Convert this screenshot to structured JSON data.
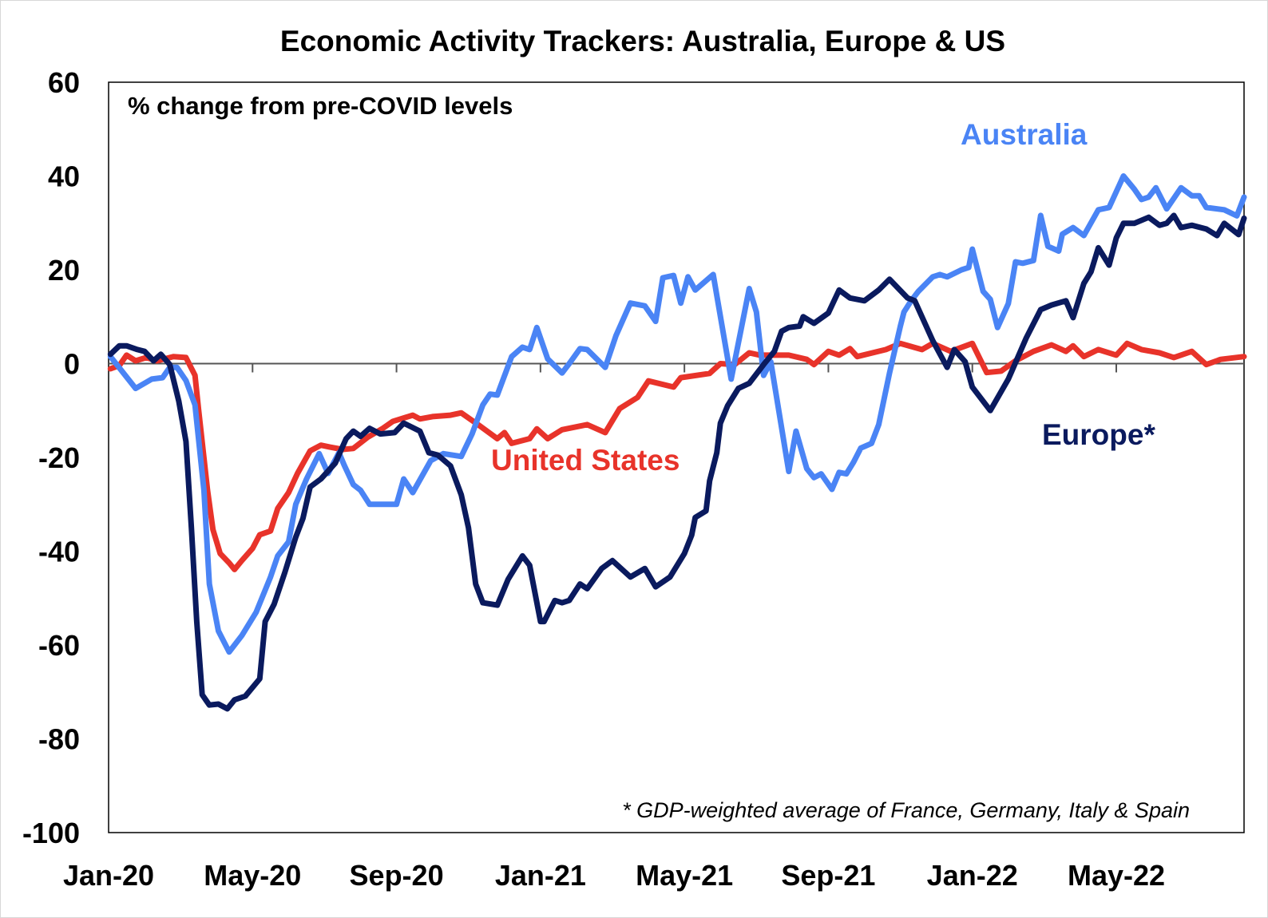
{
  "chart_data": {
    "type": "line",
    "title": "Economic Activity Trackers: Australia, Europe & US",
    "subtitle": "% change from pre-COVID levels",
    "xlabel": "",
    "ylabel": "",
    "x_unit": "months since Jan-20",
    "xlim": [
      0,
      31.55
    ],
    "ylim": [
      -100,
      60
    ],
    "yticks": [
      60,
      40,
      20,
      0,
      -20,
      -40,
      -60,
      -80,
      -100
    ],
    "ytick_labels": [
      "60",
      "40",
      "20",
      "0",
      "-20",
      "-40",
      "-60",
      "-80",
      "-100"
    ],
    "xticks": [
      0,
      4,
      8,
      12,
      16,
      20,
      24,
      28
    ],
    "xtick_labels": [
      "Jan-20",
      "May-20",
      "Sep-20",
      "Jan-21",
      "May-21",
      "Sep-21",
      "Jan-22",
      "May-22"
    ],
    "grid": false,
    "legend": "none (direct labels)",
    "footnote": "* GDP-weighted average of France, Germany, Italy & Spain",
    "series": [
      {
        "name": "United States",
        "label": "United States",
        "color": "#E8332A",
        "points": [
          [
            0.05,
            -1.1
          ],
          [
            0.3,
            -0.4
          ],
          [
            0.5,
            1.8
          ],
          [
            0.75,
            0.6
          ],
          [
            1.05,
            1.3
          ],
          [
            1.35,
            0.6
          ],
          [
            1.8,
            1.5
          ],
          [
            2.15,
            1.3
          ],
          [
            2.4,
            -2.5
          ],
          [
            2.5,
            -9.8
          ],
          [
            2.75,
            -27
          ],
          [
            2.9,
            -35.4
          ],
          [
            3.1,
            -40.5
          ],
          [
            3.35,
            -42.5
          ],
          [
            3.5,
            -43.9
          ],
          [
            3.7,
            -42
          ],
          [
            4.0,
            -39.4
          ],
          [
            4.2,
            -36.5
          ],
          [
            4.5,
            -35.7
          ],
          [
            4.7,
            -30.9
          ],
          [
            5.0,
            -27.5
          ],
          [
            5.25,
            -23.4
          ],
          [
            5.6,
            -18.6
          ],
          [
            5.9,
            -17.4
          ],
          [
            6.15,
            -17.8
          ],
          [
            6.5,
            -18.3
          ],
          [
            6.8,
            -18.1
          ],
          [
            7.2,
            -15.7
          ],
          [
            7.6,
            -13.9
          ],
          [
            7.9,
            -12.3
          ],
          [
            8.45,
            -11
          ],
          [
            8.65,
            -11.8
          ],
          [
            9.0,
            -11.3
          ],
          [
            9.5,
            -11
          ],
          [
            9.8,
            -10.5
          ],
          [
            10.3,
            -13.2
          ],
          [
            10.8,
            -16
          ],
          [
            11.0,
            -14.7
          ],
          [
            11.2,
            -17
          ],
          [
            11.7,
            -16
          ],
          [
            11.9,
            -13.9
          ],
          [
            12.2,
            -16
          ],
          [
            12.6,
            -14.1
          ],
          [
            13.3,
            -13
          ],
          [
            13.8,
            -14.7
          ],
          [
            14.2,
            -9.6
          ],
          [
            14.7,
            -7.2
          ],
          [
            15.0,
            -3.7
          ],
          [
            15.7,
            -5
          ],
          [
            15.9,
            -3
          ],
          [
            16.7,
            -2.1
          ],
          [
            17.0,
            0
          ],
          [
            17.4,
            -0.2
          ],
          [
            17.8,
            2.3
          ],
          [
            18.1,
            1.8
          ],
          [
            18.4,
            1.8
          ],
          [
            18.9,
            1.8
          ],
          [
            19.4,
            0.9
          ],
          [
            19.6,
            -0.2
          ],
          [
            20.0,
            2.6
          ],
          [
            20.3,
            1.8
          ],
          [
            20.6,
            3.2
          ],
          [
            20.8,
            1.5
          ],
          [
            21.6,
            3
          ],
          [
            22.0,
            4.3
          ],
          [
            22.6,
            3
          ],
          [
            22.9,
            4.3
          ],
          [
            23.4,
            2.6
          ],
          [
            24.0,
            4.3
          ],
          [
            24.4,
            -1.9
          ],
          [
            24.8,
            -1.6
          ],
          [
            25.2,
            0.6
          ],
          [
            25.7,
            2.6
          ],
          [
            26.2,
            4
          ],
          [
            26.6,
            2.6
          ],
          [
            26.8,
            3.8
          ],
          [
            27.1,
            1.5
          ],
          [
            27.5,
            3
          ],
          [
            28.0,
            1.8
          ],
          [
            28.3,
            4.3
          ],
          [
            28.7,
            3
          ],
          [
            29.2,
            2.3
          ],
          [
            29.6,
            1.3
          ],
          [
            30.1,
            2.6
          ],
          [
            30.5,
            -0.2
          ],
          [
            30.9,
            0.9
          ],
          [
            31.55,
            1.5
          ]
        ]
      },
      {
        "name": "Australia",
        "label": "Australia",
        "color": "#4A84F5",
        "points": [
          [
            0.05,
            1.5
          ],
          [
            0.75,
            -5.3
          ],
          [
            1.2,
            -3.3
          ],
          [
            1.5,
            -3
          ],
          [
            1.7,
            -0.8
          ],
          [
            1.9,
            -0.8
          ],
          [
            2.15,
            -3.6
          ],
          [
            2.4,
            -8.8
          ],
          [
            2.65,
            -27
          ],
          [
            2.8,
            -47
          ],
          [
            3.05,
            -57
          ],
          [
            3.35,
            -61.5
          ],
          [
            3.7,
            -58
          ],
          [
            4.1,
            -53
          ],
          [
            4.5,
            -45.5
          ],
          [
            4.7,
            -41
          ],
          [
            5.0,
            -38
          ],
          [
            5.2,
            -30
          ],
          [
            5.5,
            -24.6
          ],
          [
            5.85,
            -19.2
          ],
          [
            6.1,
            -23.4
          ],
          [
            6.4,
            -19
          ],
          [
            6.55,
            -21.7
          ],
          [
            6.8,
            -25.8
          ],
          [
            7.0,
            -27
          ],
          [
            7.25,
            -30
          ],
          [
            8.0,
            -30
          ],
          [
            8.2,
            -24.6
          ],
          [
            8.45,
            -27.5
          ],
          [
            8.95,
            -20.7
          ],
          [
            9.3,
            -19.2
          ],
          [
            9.8,
            -19.8
          ],
          [
            10.1,
            -15
          ],
          [
            10.4,
            -8.8
          ],
          [
            10.6,
            -6.5
          ],
          [
            10.8,
            -6.7
          ],
          [
            11.2,
            1.5
          ],
          [
            11.5,
            3.5
          ],
          [
            11.7,
            3
          ],
          [
            11.9,
            7.7
          ],
          [
            12.2,
            1
          ],
          [
            12.6,
            -2
          ],
          [
            12.8,
            0
          ],
          [
            13.1,
            3.2
          ],
          [
            13.3,
            3
          ],
          [
            13.8,
            -0.8
          ],
          [
            14.1,
            6
          ],
          [
            14.5,
            12.9
          ],
          [
            14.9,
            12.3
          ],
          [
            15.2,
            9
          ],
          [
            15.4,
            18.3
          ],
          [
            15.7,
            18.8
          ],
          [
            15.9,
            12.9
          ],
          [
            16.1,
            18.5
          ],
          [
            16.3,
            15.7
          ],
          [
            16.8,
            19
          ],
          [
            17.3,
            -3.3
          ],
          [
            17.8,
            16
          ],
          [
            18.0,
            11
          ],
          [
            18.2,
            -2.5
          ],
          [
            18.4,
            0.4
          ],
          [
            18.9,
            -23
          ],
          [
            19.1,
            -14.4
          ],
          [
            19.4,
            -22.4
          ],
          [
            19.6,
            -24.3
          ],
          [
            19.8,
            -23.5
          ],
          [
            20.1,
            -26.8
          ],
          [
            20.3,
            -23.2
          ],
          [
            20.5,
            -23.5
          ],
          [
            20.7,
            -21
          ],
          [
            20.9,
            -18
          ],
          [
            21.2,
            -17
          ],
          [
            21.4,
            -13
          ],
          [
            21.7,
            -2
          ],
          [
            22.0,
            8
          ],
          [
            22.1,
            11
          ],
          [
            22.3,
            13.4
          ],
          [
            22.5,
            15.4
          ],
          [
            22.9,
            18.5
          ],
          [
            23.1,
            19
          ],
          [
            23.3,
            18.5
          ],
          [
            23.7,
            20
          ],
          [
            23.9,
            20.5
          ],
          [
            24.0,
            24.4
          ],
          [
            24.3,
            15.4
          ],
          [
            24.5,
            13.7
          ],
          [
            24.7,
            7.7
          ],
          [
            25.0,
            12.8
          ],
          [
            25.2,
            21.7
          ],
          [
            25.4,
            21.4
          ],
          [
            25.7,
            22
          ],
          [
            25.9,
            31.6
          ],
          [
            26.1,
            25
          ],
          [
            26.4,
            24
          ],
          [
            26.5,
            27.6
          ],
          [
            26.8,
            29
          ],
          [
            27.1,
            27.3
          ],
          [
            27.5,
            32.8
          ],
          [
            27.8,
            33.3
          ],
          [
            28.2,
            40
          ],
          [
            28.5,
            37.2
          ],
          [
            28.7,
            35
          ],
          [
            28.9,
            35.5
          ],
          [
            29.1,
            37.5
          ],
          [
            29.4,
            33
          ],
          [
            29.8,
            37.5
          ],
          [
            30.1,
            35.8
          ],
          [
            30.3,
            35.8
          ],
          [
            30.5,
            33.3
          ],
          [
            31.0,
            32.8
          ],
          [
            31.35,
            31.5
          ],
          [
            31.55,
            35.5
          ]
        ]
      },
      {
        "name": "Europe*",
        "label": "Europe*",
        "color": "#0A1A5E",
        "points": [
          [
            0.05,
            2
          ],
          [
            0.3,
            3.8
          ],
          [
            0.5,
            3.8
          ],
          [
            0.8,
            3
          ],
          [
            1.0,
            2.6
          ],
          [
            1.25,
            0.6
          ],
          [
            1.45,
            2
          ],
          [
            1.7,
            -0.2
          ],
          [
            1.95,
            -8
          ],
          [
            2.15,
            -16.6
          ],
          [
            2.3,
            -35
          ],
          [
            2.45,
            -55
          ],
          [
            2.6,
            -70.6
          ],
          [
            2.8,
            -72.8
          ],
          [
            3.05,
            -72.6
          ],
          [
            3.3,
            -73.6
          ],
          [
            3.5,
            -71.7
          ],
          [
            3.8,
            -70.9
          ],
          [
            4.2,
            -67.2
          ],
          [
            4.35,
            -55
          ],
          [
            4.6,
            -51.3
          ],
          [
            4.9,
            -44.5
          ],
          [
            5.2,
            -37
          ],
          [
            5.4,
            -33
          ],
          [
            5.6,
            -26.3
          ],
          [
            5.9,
            -24.6
          ],
          [
            6.3,
            -21.2
          ],
          [
            6.6,
            -16
          ],
          [
            6.8,
            -14.4
          ],
          [
            7.0,
            -15.5
          ],
          [
            7.25,
            -13.8
          ],
          [
            7.55,
            -15
          ],
          [
            7.95,
            -14.7
          ],
          [
            8.2,
            -12.7
          ],
          [
            8.65,
            -14.4
          ],
          [
            8.9,
            -19
          ],
          [
            9.15,
            -19.5
          ],
          [
            9.5,
            -21.8
          ],
          [
            9.8,
            -28
          ],
          [
            10.0,
            -35
          ],
          [
            10.2,
            -47
          ],
          [
            10.4,
            -51
          ],
          [
            10.8,
            -51.5
          ],
          [
            11.1,
            -46
          ],
          [
            11.5,
            -41
          ],
          [
            11.7,
            -43
          ],
          [
            12.0,
            -55
          ],
          [
            12.1,
            -55
          ],
          [
            12.4,
            -50.5
          ],
          [
            12.6,
            -51
          ],
          [
            12.8,
            -50.5
          ],
          [
            13.1,
            -47
          ],
          [
            13.3,
            -48
          ],
          [
            13.7,
            -43.7
          ],
          [
            14.0,
            -42
          ],
          [
            14.5,
            -45.5
          ],
          [
            14.9,
            -43.7
          ],
          [
            15.2,
            -47.6
          ],
          [
            15.6,
            -45.5
          ],
          [
            16.0,
            -40.5
          ],
          [
            16.2,
            -36.6
          ],
          [
            16.3,
            -32.8
          ],
          [
            16.6,
            -31.4
          ],
          [
            16.7,
            -25
          ],
          [
            16.9,
            -19
          ],
          [
            17.0,
            -12.7
          ],
          [
            17.2,
            -9
          ],
          [
            17.5,
            -5.3
          ],
          [
            17.8,
            -4.2
          ],
          [
            18.2,
            -0.2
          ],
          [
            18.5,
            2.6
          ],
          [
            18.7,
            6.9
          ],
          [
            18.9,
            7.7
          ],
          [
            19.2,
            8
          ],
          [
            19.3,
            10
          ],
          [
            19.6,
            8.6
          ],
          [
            20.0,
            10.8
          ],
          [
            20.3,
            15.7
          ],
          [
            20.6,
            14
          ],
          [
            21.0,
            13.4
          ],
          [
            21.4,
            15.7
          ],
          [
            21.7,
            18
          ],
          [
            22.2,
            14
          ],
          [
            22.4,
            13.4
          ],
          [
            22.9,
            4.9
          ],
          [
            23.3,
            -0.8
          ],
          [
            23.5,
            3
          ],
          [
            23.8,
            0.4
          ],
          [
            24.0,
            -5
          ],
          [
            24.5,
            -10
          ],
          [
            25.0,
            -3.3
          ],
          [
            25.5,
            5.5
          ],
          [
            25.9,
            11.5
          ],
          [
            26.2,
            12.5
          ],
          [
            26.6,
            13.4
          ],
          [
            26.8,
            9.8
          ],
          [
            27.1,
            17.1
          ],
          [
            27.3,
            19.6
          ],
          [
            27.5,
            24.7
          ],
          [
            27.8,
            21
          ],
          [
            28.0,
            26.8
          ],
          [
            28.2,
            29.9
          ],
          [
            28.5,
            29.9
          ],
          [
            28.9,
            31.2
          ],
          [
            29.2,
            29.5
          ],
          [
            29.4,
            29.9
          ],
          [
            29.6,
            31.6
          ],
          [
            29.8,
            29
          ],
          [
            30.1,
            29.5
          ],
          [
            30.5,
            28.7
          ],
          [
            30.8,
            27.3
          ],
          [
            31.0,
            29.9
          ],
          [
            31.4,
            27.5
          ],
          [
            31.55,
            31
          ]
        ]
      }
    ]
  }
}
